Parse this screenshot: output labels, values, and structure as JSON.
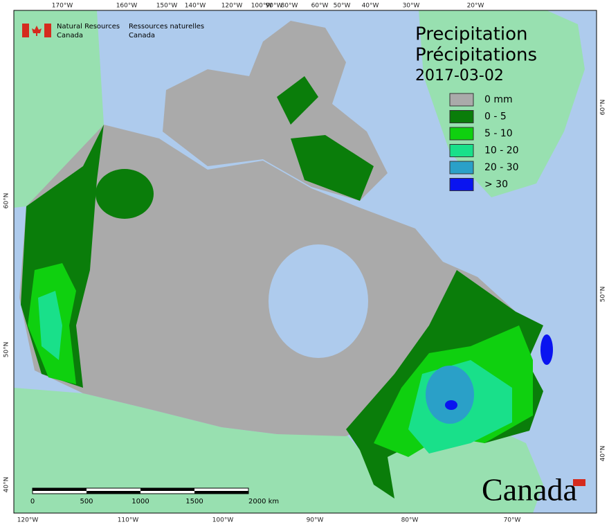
{
  "logo": {
    "en": [
      "Natural Resources",
      "Canada"
    ],
    "fr": [
      "Ressources naturelles",
      "Canada"
    ]
  },
  "title": [
    "Precipitation",
    "Précipitations"
  ],
  "date": "2017-03-02",
  "legend": [
    {
      "label": "0 mm",
      "color": "#aaaaaa"
    },
    {
      "label": "0 - 5",
      "color": "#0a7d0a"
    },
    {
      "label": "5 - 10",
      "color": "#0fd00f"
    },
    {
      "label": "10 - 20",
      "color": "#19e08a"
    },
    {
      "label": "20 - 30",
      "color": "#2aa0c8"
    },
    {
      "label": "> 30",
      "color": "#0a14f0"
    }
  ],
  "graticule": {
    "top": [
      "170°W",
      "160°W",
      "150°W",
      "140°W",
      "120°W",
      "100°W",
      "90°W",
      "80°W",
      "60°W",
      "50°W",
      "40°W",
      "30°W",
      "20°W"
    ],
    "bottom": [
      "120°W",
      "110°W",
      "100°W",
      "90°W",
      "80°W",
      "70°W"
    ],
    "left": [
      "60°N",
      "50°N",
      "40°N"
    ],
    "right": [
      "60°N",
      "50°N",
      "40°N"
    ]
  },
  "scale_bar": [
    "0",
    "500",
    "1000",
    "1500",
    "2000 km"
  ],
  "wordmark": "Canada"
}
